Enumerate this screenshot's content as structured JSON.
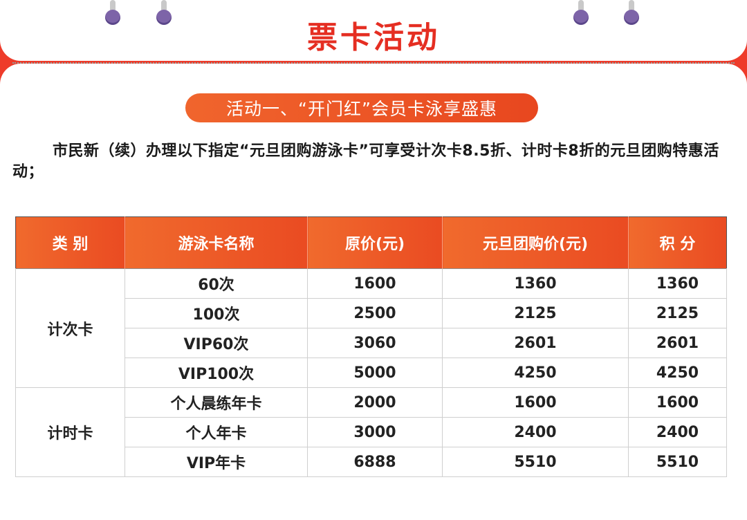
{
  "header": {
    "title": "票卡活动"
  },
  "section": {
    "badge": "活动一、“开门红”会员卡泳享盛惠"
  },
  "intro": {
    "text": "市民新（续）办理以下指定“元旦团购游泳卡”可享受计次卡8.5折、计时卡8折的元旦团购特惠活动；"
  },
  "table": {
    "headers": [
      "类 别",
      "游泳卡名称",
      "原价(元)",
      "元旦团购价(元)",
      "积 分"
    ],
    "groups": [
      {
        "category": "计次卡",
        "rows": [
          {
            "name": "60次",
            "original": "1600",
            "price": "1360",
            "points": "1360"
          },
          {
            "name": "100次",
            "original": "2500",
            "price": "2125",
            "points": "2125"
          },
          {
            "name": "VIP60次",
            "original": "3060",
            "price": "2601",
            "points": "2601"
          },
          {
            "name": "VIP100次",
            "original": "5000",
            "price": "4250",
            "points": "4250"
          }
        ]
      },
      {
        "category": "计时卡",
        "rows": [
          {
            "name": "个人晨练年卡",
            "original": "2000",
            "price": "1600",
            "points": "1600"
          },
          {
            "name": "个人年卡",
            "original": "3000",
            "price": "2400",
            "points": "2400"
          },
          {
            "name": "VIP年卡",
            "original": "6888",
            "price": "5510",
            "points": "5510"
          }
        ]
      }
    ]
  },
  "colors": {
    "background": "#ee3b2a",
    "accent": "#e52e22",
    "header_gradient_start": "#f06a2d"
  }
}
